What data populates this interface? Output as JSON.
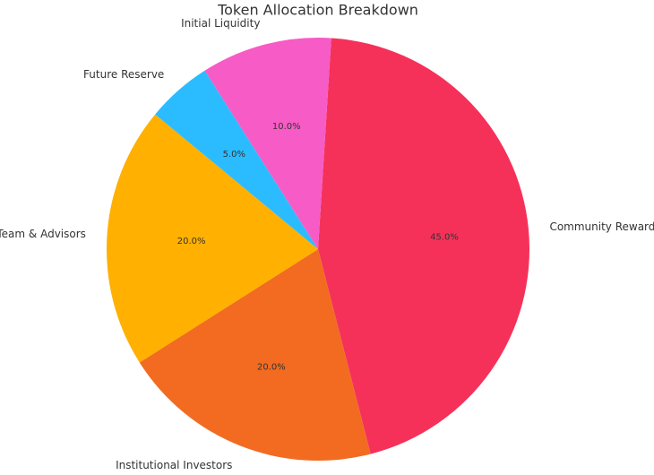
{
  "chart_data": {
    "type": "pie",
    "title": "Token Allocation Breakdown",
    "categories": [
      "Community Rewards",
      "Institutional Investors",
      "Team & Advisors",
      "Future Reserve",
      "Initial Liquidity"
    ],
    "values": [
      45,
      20,
      20,
      5,
      10
    ],
    "value_labels": [
      "45.0%",
      "20.0%",
      "20.0%",
      "5.0%",
      "10.0%"
    ],
    "colors": [
      "#f5315a",
      "#f26b21",
      "#ffb000",
      "#2bbcff",
      "#f75bc5"
    ]
  }
}
